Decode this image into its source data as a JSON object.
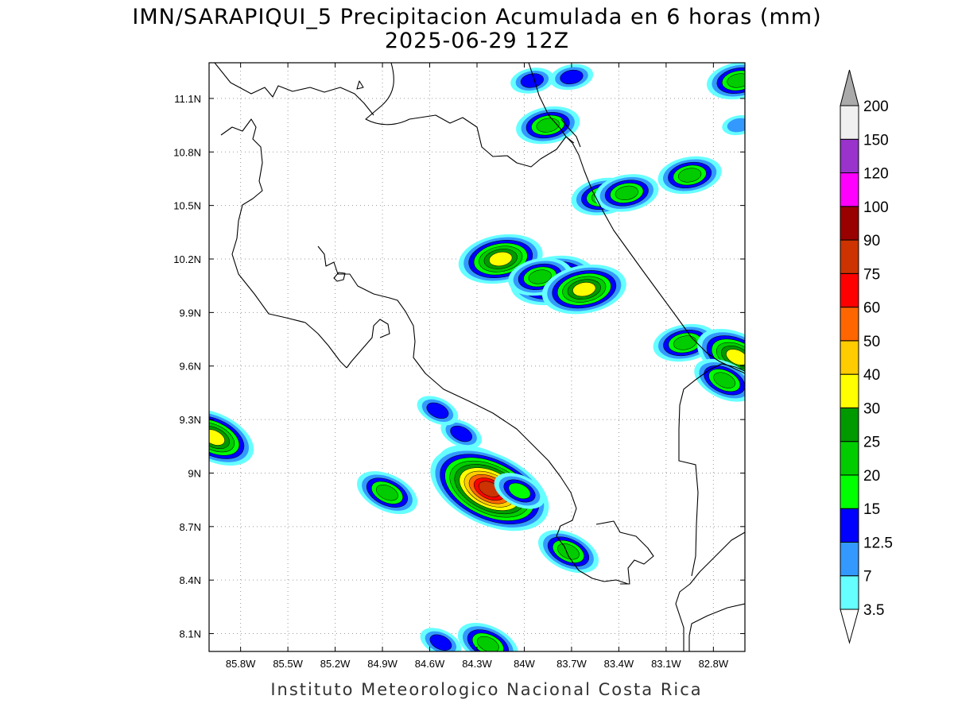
{
  "title": {
    "line1": "IMN/SARAPIQUI_5 Precipitacion Acumulada en 6 horas (mm)",
    "line2": "2025-06-29 12Z"
  },
  "credit": "Instituto Meteorologico Nacional Costa Rica",
  "map": {
    "x_axis_labels": [
      "85.8W",
      "85.5W",
      "85.2W",
      "84.9W",
      "84.6W",
      "84.3W",
      "84W",
      "83.7W",
      "83.4W",
      "83.1W",
      "82.8W"
    ],
    "y_axis_labels": [
      "11.1N",
      "10.8N",
      "10.5N",
      "10.2N",
      "9.9N",
      "9.6N",
      "9.3N",
      "9N",
      "8.7N",
      "8.4N",
      "8.1N"
    ],
    "lon_range": [
      "86.0W",
      "82.6W"
    ],
    "lat_range": [
      "8.0N",
      "11.3N"
    ],
    "grid": "dotted"
  },
  "colorbar": {
    "labels": [
      "3.5",
      "7",
      "12.5",
      "15",
      "20",
      "25",
      "30",
      "40",
      "50",
      "60",
      "75",
      "90",
      "100",
      "120",
      "150",
      "200"
    ],
    "colors": [
      "#66ffff",
      "#3399ff",
      "#0000ff",
      "#00ff00",
      "#00cc00",
      "#009900",
      "#ffff00",
      "#ffcc00",
      "#ff6600",
      "#ff0000",
      "#cc3300",
      "#990000",
      "#ff00ff",
      "#9933cc",
      "#f0f0f0",
      "#aaaaaa"
    ]
  },
  "precip_cells": [
    {
      "lon": -83.7,
      "lat": 11.22,
      "peak": "12.5"
    },
    {
      "lon": -83.95,
      "lat": 11.2,
      "peak": "12.5"
    },
    {
      "lon": -82.64,
      "lat": 11.2,
      "peak": "20"
    },
    {
      "lon": -83.85,
      "lat": 10.95,
      "peak": "20"
    },
    {
      "lon": -82.64,
      "lat": 10.95,
      "peak": "7"
    },
    {
      "lon": -83.5,
      "lat": 10.55,
      "peak": "20"
    },
    {
      "lon": -83.35,
      "lat": 10.57,
      "peak": "20"
    },
    {
      "lon": -82.95,
      "lat": 10.67,
      "peak": "20"
    },
    {
      "lon": -84.15,
      "lat": 10.2,
      "peak": "30"
    },
    {
      "lon": -83.82,
      "lat": 10.08,
      "peak": "30"
    },
    {
      "lon": -83.9,
      "lat": 10.1,
      "peak": "20"
    },
    {
      "lon": -83.62,
      "lat": 10.03,
      "peak": "30"
    },
    {
      "lon": -82.98,
      "lat": 9.73,
      "peak": "20"
    },
    {
      "lon": -82.65,
      "lat": 9.65,
      "peak": "30"
    },
    {
      "lon": -82.73,
      "lat": 9.52,
      "peak": "20"
    },
    {
      "lon": -85.97,
      "lat": 9.2,
      "peak": "30"
    },
    {
      "lon": -84.27,
      "lat": 8.98,
      "peak": "40"
    },
    {
      "lon": -84.22,
      "lat": 8.91,
      "peak": "75"
    },
    {
      "lon": -84.4,
      "lat": 9.22,
      "peak": "12.5"
    },
    {
      "lon": -84.55,
      "lat": 9.35,
      "peak": "12.5"
    },
    {
      "lon": -84.87,
      "lat": 8.89,
      "peak": "20"
    },
    {
      "lon": -84.03,
      "lat": 8.9,
      "peak": "15"
    },
    {
      "lon": -83.72,
      "lat": 8.56,
      "peak": "20"
    },
    {
      "lon": -84.23,
      "lat": 8.04,
      "peak": "20"
    },
    {
      "lon": -84.53,
      "lat": 8.05,
      "peak": "12.5"
    }
  ]
}
